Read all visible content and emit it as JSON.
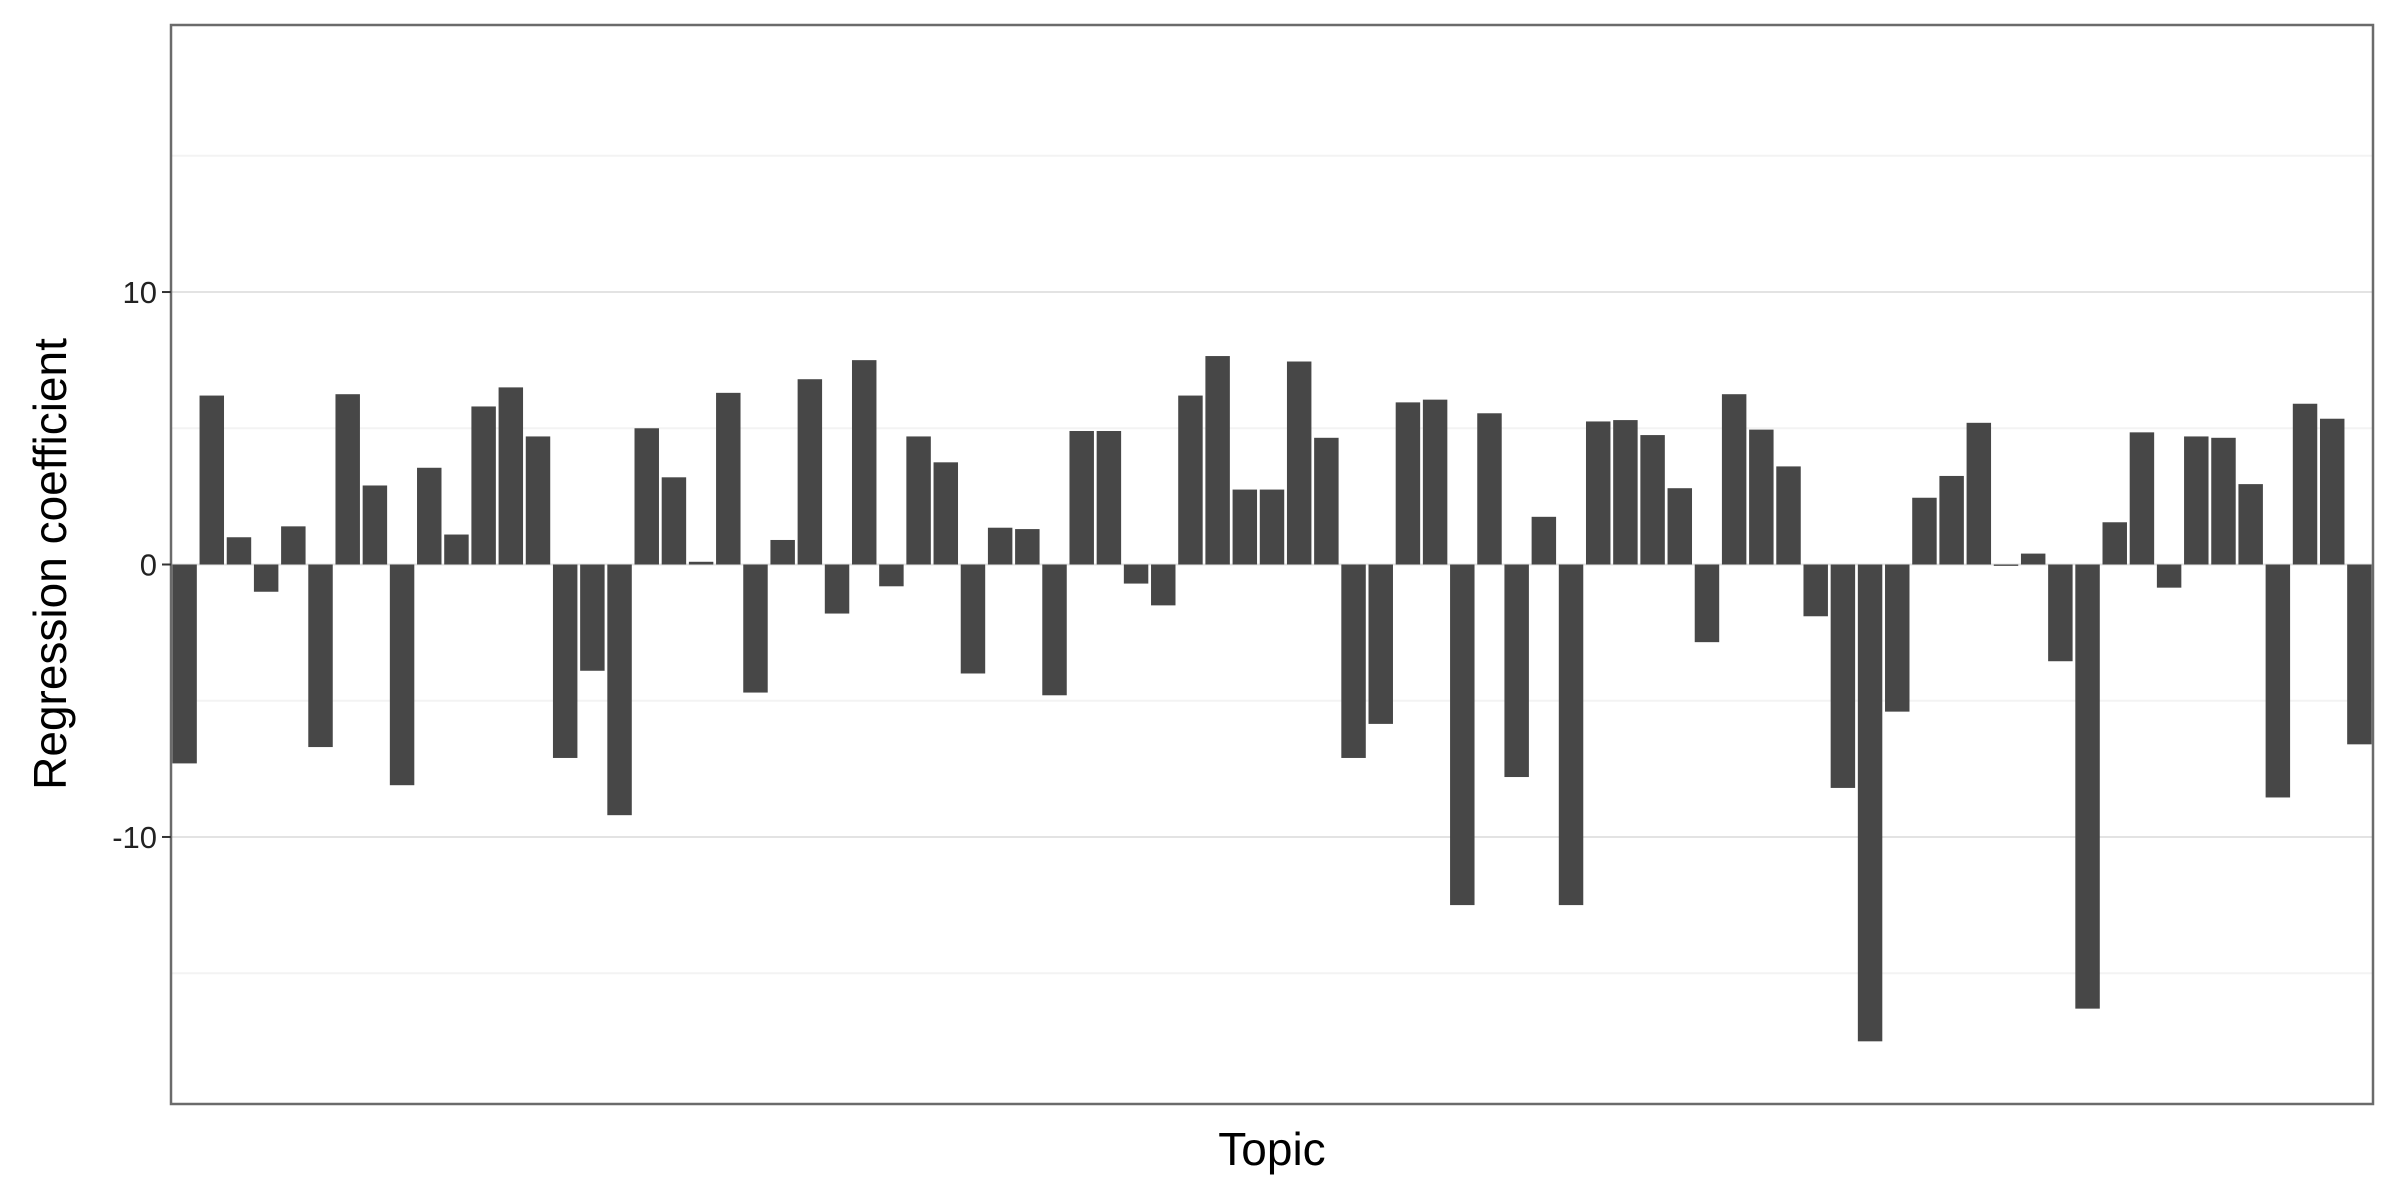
{
  "chart_data": {
    "type": "bar",
    "title": "",
    "xlabel": "Topic",
    "ylabel": "Regression coefficient",
    "ylim": [
      -19.8,
      19.8
    ],
    "yticks": [
      -10,
      0,
      10
    ],
    "ytick_labels": [
      "-10",
      "0",
      "10"
    ],
    "minor_grid": [
      -15,
      -5,
      5,
      15
    ],
    "grid": true,
    "legend": "none",
    "bar_color": "#474747",
    "values": [
      -7.3,
      6.2,
      1.0,
      -1.0,
      1.4,
      -6.7,
      6.25,
      2.9,
      -8.1,
      3.55,
      1.1,
      5.8,
      6.5,
      4.7,
      -7.1,
      -3.9,
      -9.2,
      5.0,
      3.2,
      0.1,
      6.3,
      -4.7,
      0.9,
      6.8,
      -1.8,
      7.5,
      -0.8,
      4.7,
      3.75,
      -4.0,
      1.35,
      1.3,
      -4.8,
      4.9,
      4.9,
      -0.7,
      -1.5,
      6.2,
      7.65,
      2.75,
      2.75,
      7.45,
      4.65,
      -7.1,
      -5.85,
      5.95,
      6.05,
      -12.5,
      5.55,
      -7.8,
      1.75,
      -12.5,
      5.25,
      5.3,
      4.75,
      2.8,
      -2.85,
      6.25,
      4.95,
      3.6,
      -1.9,
      -8.2,
      -17.5,
      -5.4,
      2.45,
      3.25,
      5.2,
      -0.05,
      0.4,
      -3.55,
      -16.3,
      1.55,
      4.85,
      -0.85,
      4.7,
      4.65,
      2.95,
      -8.55,
      5.9,
      5.35,
      -6.6
    ]
  }
}
